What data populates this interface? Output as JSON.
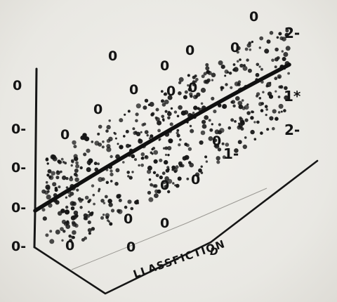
{
  "y_ticks": [
    "0",
    "0-",
    "0-",
    "0-",
    "0-"
  ],
  "axis_label": "LLASSFICTION",
  "axis_sublabel": "D",
  "right_marks": [
    "2-",
    "1*",
    "2-"
  ],
  "mid_mark": "1-",
  "scattered_zero": "0",
  "ink_color": "#161616",
  "paper_color": "#ecebe6"
}
